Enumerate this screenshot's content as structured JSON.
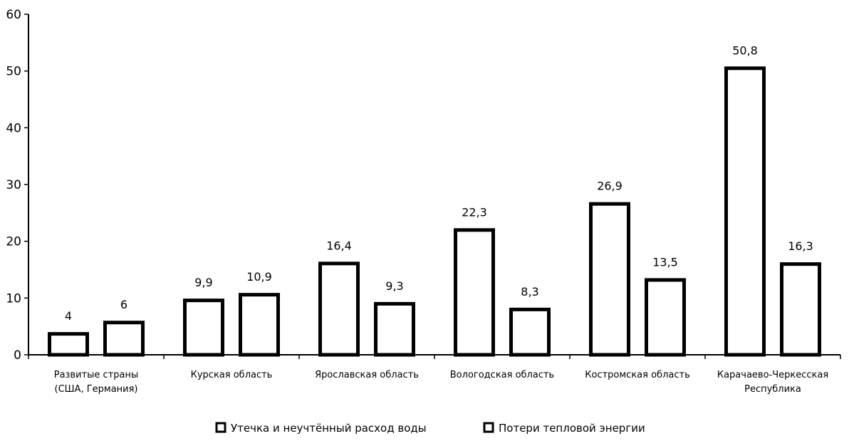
{
  "chart_data": {
    "type": "bar",
    "categories": [
      [
        "Развитые страны",
        "(США, Германия)"
      ],
      [
        "Курская область"
      ],
      [
        "Ярославская область"
      ],
      [
        "Вологодская область"
      ],
      [
        "Костромская область"
      ],
      [
        "Карачаево-Черкесская",
        "Республика"
      ]
    ],
    "series": [
      {
        "name": "Утечка и неучтённый расход воды",
        "values": [
          4,
          9.9,
          16.4,
          22.3,
          26.9,
          50.8
        ],
        "labels": [
          "4",
          "9,9",
          "16,4",
          "22,3",
          "26,9",
          "50,8"
        ]
      },
      {
        "name": "Потери тепловой энергии",
        "values": [
          6,
          10.9,
          9.3,
          8.3,
          13.5,
          16.3
        ],
        "labels": [
          "6",
          "10,9",
          "9,3",
          "8,3",
          "13,5",
          "16,3"
        ]
      }
    ],
    "ylim": [
      0,
      60
    ],
    "yticks": [
      0,
      10,
      20,
      30,
      40,
      50,
      60
    ],
    "grid": false,
    "legend_position": "bottom",
    "colors": {
      "bar_fill": "#ffffff",
      "bar_edge": "#000000"
    }
  }
}
